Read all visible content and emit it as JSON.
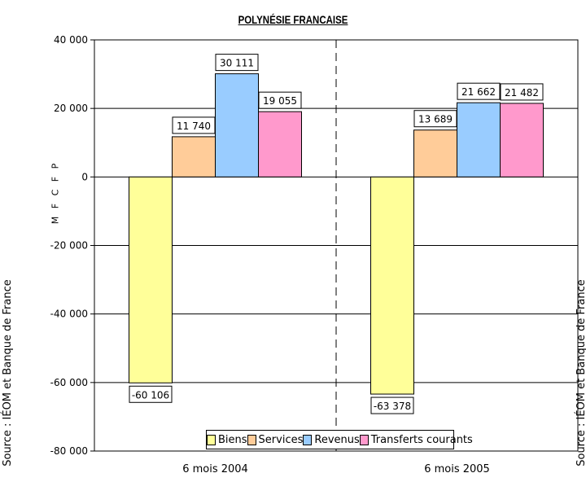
{
  "chart_data": {
    "type": "bar",
    "title": "POLYNÉSIE FRANCAISE",
    "ylabel": "M F C F P",
    "source": "Source : IÉOM et Banque de France",
    "categories": [
      "6 mois 2004",
      "6 mois 2005"
    ],
    "series": [
      {
        "name": "Biens",
        "color": "#ffff99",
        "values": [
          -60106,
          -63378
        ],
        "labels": [
          "-60 106",
          "-63 378"
        ]
      },
      {
        "name": "Services",
        "color": "#ffcc99",
        "values": [
          11740,
          13689
        ],
        "labels": [
          "11 740",
          "13 689"
        ]
      },
      {
        "name": "Revenus",
        "color": "#99ccff",
        "values": [
          30111,
          21662
        ],
        "labels": [
          "30 111",
          "21 662"
        ]
      },
      {
        "name": "Transferts courants",
        "color": "#ff99cc",
        "values": [
          19055,
          21482
        ],
        "labels": [
          "19 055",
          "21 482"
        ]
      }
    ],
    "ylim": [
      -80000,
      40000
    ],
    "yticks": [
      40000,
      20000,
      0,
      -20000,
      -40000,
      -60000,
      -80000
    ],
    "ytick_labels": [
      "40 000",
      "20 000",
      "0",
      "-20 000",
      "-40 000",
      "-60 000",
      "-80 000"
    ],
    "grid": true,
    "legend_position": "bottom-center"
  }
}
